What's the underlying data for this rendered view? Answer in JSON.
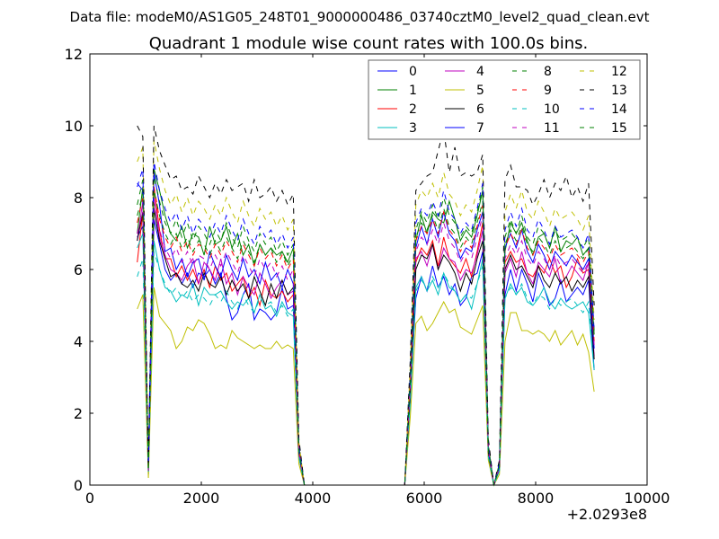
{
  "chart_data": {
    "type": "line",
    "suptitle": "Data file: modeM0/AS1G05_248T01_9000000486_03740cztM0_level2_quad_clean.evt",
    "title": "Quadrant 1 module wise count rates with 100.0s bins.",
    "xlabel": "",
    "ylabel": "",
    "x_offset_label": "+2.0293e8",
    "xlim": [
      0,
      10000
    ],
    "ylim": [
      0,
      12
    ],
    "x_ticks": [
      0,
      2000,
      4000,
      6000,
      8000,
      10000
    ],
    "y_ticks": [
      0,
      2,
      4,
      6,
      8,
      10,
      12
    ],
    "grid": false,
    "legend_position": "top-right",
    "x": [
      850,
      950,
      1050,
      1150,
      1250,
      1350,
      1450,
      1550,
      1650,
      1750,
      1850,
      1950,
      2050,
      2150,
      2250,
      2350,
      2450,
      2550,
      2650,
      2750,
      2850,
      2950,
      3050,
      3150,
      3250,
      3350,
      3450,
      3550,
      3650,
      3750,
      3850,
      5650,
      5750,
      5850,
      5950,
      6050,
      6150,
      6250,
      6350,
      6450,
      6550,
      6650,
      6750,
      6850,
      6950,
      7050,
      7150,
      7250,
      7350,
      7450,
      7550,
      7650,
      7750,
      7850,
      7950,
      8050,
      8150,
      8250,
      8350,
      8450,
      8550,
      8650,
      8750,
      8850,
      8950,
      9050
    ],
    "series": [
      {
        "name": "0",
        "color": "#0000ff",
        "dash": false,
        "values": [
          6.9,
          7.2,
          0.3,
          7.4,
          6.7,
          6.0,
          5.7,
          5.9,
          5.6,
          5.9,
          5.5,
          5.9,
          5.8,
          6.0,
          5.6,
          5.9,
          5.2,
          4.6,
          4.8,
          5.3,
          5.6,
          4.6,
          4.9,
          4.8,
          4.6,
          4.8,
          5.5,
          4.9,
          5.0,
          0.9,
          0.0,
          0.0,
          2.5,
          5.2,
          5.8,
          5.4,
          6.1,
          5.5,
          5.8,
          5.3,
          5.6,
          5.0,
          5.2,
          5.8,
          5.9,
          6.5,
          0.9,
          0.0,
          0.5,
          5.3,
          6.0,
          5.4,
          6.0,
          5.6,
          5.1,
          5.9,
          5.5,
          5.0,
          5.2,
          5.7,
          5.1,
          5.3,
          5.5,
          5.3,
          5.7,
          3.2
        ]
      },
      {
        "name": "1",
        "color": "#008000",
        "dash": false,
        "values": [
          7.0,
          8.3,
          0.4,
          8.8,
          8.2,
          7.5,
          7.0,
          6.8,
          7.2,
          6.6,
          7.0,
          6.9,
          6.4,
          7.2,
          6.7,
          6.8,
          7.2,
          6.6,
          7.0,
          6.4,
          6.7,
          6.1,
          6.7,
          6.4,
          6.6,
          6.4,
          6.5,
          6.2,
          6.6,
          1.0,
          0.0,
          0.0,
          2.8,
          6.8,
          7.5,
          7.0,
          7.6,
          7.4,
          7.3,
          7.9,
          7.4,
          6.8,
          7.1,
          6.9,
          7.5,
          8.2,
          1.1,
          0.0,
          0.6,
          6.5,
          7.3,
          7.0,
          7.3,
          6.8,
          6.4,
          6.9,
          7.0,
          6.6,
          7.2,
          6.5,
          6.8,
          6.7,
          6.9,
          6.4,
          6.6,
          4.2
        ]
      },
      {
        "name": "2",
        "color": "#ff0000",
        "dash": false,
        "values": [
          6.2,
          7.6,
          0.5,
          8.3,
          7.1,
          6.3,
          6.3,
          5.8,
          6.1,
          5.7,
          6.0,
          5.6,
          6.0,
          5.5,
          6.1,
          5.7,
          5.9,
          5.4,
          5.6,
          5.8,
          5.2,
          5.5,
          5.0,
          5.7,
          5.3,
          5.2,
          5.4,
          5.1,
          5.3,
          0.8,
          0.0,
          0.0,
          2.7,
          6.2,
          6.6,
          6.4,
          6.8,
          6.1,
          6.9,
          6.3,
          6.1,
          5.9,
          6.3,
          5.8,
          6.5,
          7.3,
          0.9,
          0.0,
          0.5,
          6.2,
          6.5,
          6.2,
          6.3,
          5.9,
          5.8,
          6.1,
          5.9,
          6.3,
          5.9,
          6.1,
          5.5,
          5.8,
          6.3,
          5.9,
          6.0,
          3.5
        ]
      },
      {
        "name": "3",
        "color": "#00bfbf",
        "dash": false,
        "values": [
          6.6,
          7.0,
          0.3,
          6.8,
          6.0,
          5.5,
          5.4,
          5.1,
          5.3,
          5.2,
          5.6,
          5.0,
          5.5,
          5.3,
          5.3,
          5.4,
          5.1,
          4.9,
          5.1,
          5.0,
          5.2,
          4.8,
          5.3,
          4.9,
          5.0,
          4.7,
          5.1,
          4.8,
          4.7,
          0.8,
          0.0,
          0.0,
          2.3,
          5.5,
          5.8,
          5.4,
          5.7,
          5.3,
          5.9,
          5.5,
          5.4,
          5.1,
          5.3,
          4.9,
          5.6,
          6.3,
          0.8,
          0.0,
          0.4,
          5.2,
          5.6,
          5.3,
          5.5,
          5.1,
          5.0,
          5.2,
          5.5,
          5.1,
          4.9,
          5.2,
          5.0,
          4.9,
          5.0,
          5.1,
          4.8,
          3.2
        ]
      },
      {
        "name": "4",
        "color": "#bf00bf",
        "dash": false,
        "values": [
          6.8,
          7.9,
          0.4,
          8.0,
          6.9,
          6.4,
          6.0,
          5.9,
          5.7,
          6.1,
          6.3,
          5.6,
          6.2,
          6.0,
          5.7,
          6.3,
          5.6,
          5.9,
          5.3,
          5.8,
          5.5,
          5.3,
          5.9,
          5.6,
          5.2,
          5.5,
          5.7,
          5.3,
          5.4,
          0.9,
          0.0,
          0.0,
          2.6,
          6.3,
          6.5,
          6.1,
          6.7,
          6.0,
          6.6,
          6.3,
          6.2,
          5.7,
          6.0,
          5.9,
          6.4,
          7.1,
          0.9,
          0.0,
          0.5,
          5.9,
          6.3,
          5.8,
          6.5,
          5.9,
          5.6,
          6.2,
          6.0,
          5.8,
          6.3,
          5.6,
          5.8,
          6.1,
          5.9,
          5.7,
          6.2,
          3.6
        ]
      },
      {
        "name": "5",
        "color": "#bfbf00",
        "dash": false,
        "values": [
          4.9,
          5.3,
          0.2,
          5.5,
          4.7,
          4.5,
          4.3,
          3.8,
          4.0,
          4.4,
          4.3,
          4.6,
          4.5,
          4.2,
          3.8,
          3.9,
          3.8,
          4.3,
          4.1,
          4.0,
          3.9,
          3.8,
          3.9,
          3.8,
          3.8,
          4.0,
          3.8,
          3.9,
          3.8,
          0.6,
          0.0,
          0.0,
          1.9,
          4.5,
          4.7,
          4.3,
          4.5,
          4.8,
          5.1,
          4.8,
          4.9,
          4.4,
          4.3,
          4.2,
          4.6,
          5.0,
          0.7,
          0.0,
          0.3,
          4.0,
          4.8,
          4.8,
          4.3,
          4.3,
          4.2,
          4.3,
          4.2,
          4.0,
          4.3,
          3.9,
          4.1,
          4.3,
          3.9,
          4.2,
          3.7,
          2.6
        ]
      },
      {
        "name": "6",
        "color": "#000000",
        "dash": false,
        "values": [
          6.8,
          7.6,
          0.4,
          7.7,
          6.8,
          6.3,
          5.8,
          5.9,
          5.6,
          5.5,
          5.7,
          5.4,
          5.9,
          5.6,
          5.5,
          5.8,
          5.3,
          5.7,
          5.4,
          5.6,
          5.2,
          5.8,
          5.4,
          5.0,
          5.6,
          5.2,
          5.7,
          5.3,
          5.5,
          0.9,
          0.0,
          0.0,
          2.6,
          6.0,
          6.4,
          6.3,
          6.7,
          6.0,
          6.4,
          6.2,
          5.9,
          5.4,
          5.9,
          5.6,
          6.3,
          6.8,
          0.9,
          0.0,
          0.5,
          6.0,
          6.4,
          6.0,
          6.1,
          5.8,
          5.5,
          6.1,
          5.7,
          5.5,
          5.9,
          5.6,
          5.8,
          5.4,
          5.7,
          5.5,
          5.8,
          3.5
        ]
      },
      {
        "name": "7",
        "color": "#0000ff",
        "dash": false,
        "values": [
          8.4,
          8.2,
          0.5,
          8.7,
          7.8,
          6.5,
          6.6,
          6.0,
          6.3,
          5.8,
          6.2,
          6.3,
          5.7,
          6.5,
          6.1,
          5.8,
          6.4,
          6.0,
          5.7,
          6.3,
          5.8,
          6.0,
          5.6,
          6.2,
          5.7,
          5.9,
          5.5,
          6.0,
          5.6,
          0.9,
          0.0,
          0.0,
          2.8,
          6.6,
          7.2,
          6.7,
          7.4,
          6.9,
          7.6,
          7.0,
          6.8,
          6.3,
          6.6,
          6.5,
          7.1,
          7.6,
          1.0,
          0.0,
          0.5,
          6.6,
          7.0,
          6.6,
          7.1,
          6.5,
          6.2,
          6.7,
          6.4,
          6.0,
          6.5,
          6.3,
          6.1,
          6.4,
          6.2,
          6.0,
          6.3,
          3.8
        ]
      },
      {
        "name": "8",
        "color": "#008000",
        "dash": true,
        "values": [
          7.8,
          8.5,
          0.4,
          8.6,
          7.9,
          7.3,
          7.0,
          7.4,
          6.9,
          7.3,
          6.8,
          7.2,
          7.0,
          6.7,
          7.1,
          6.8,
          7.3,
          6.9,
          6.6,
          7.2,
          6.8,
          6.5,
          7.0,
          6.7,
          6.9,
          6.5,
          6.8,
          6.4,
          6.7,
          1.1,
          0.0,
          0.0,
          3.0,
          7.1,
          7.6,
          7.3,
          7.8,
          7.4,
          8.0,
          7.5,
          7.3,
          6.9,
          7.2,
          7.0,
          7.6,
          8.3,
          1.1,
          0.0,
          0.6,
          6.9,
          7.4,
          7.0,
          7.5,
          6.9,
          6.7,
          7.2,
          7.0,
          6.6,
          7.1,
          6.8,
          6.9,
          7.0,
          6.8,
          6.6,
          6.9,
          4.3
        ]
      },
      {
        "name": "9",
        "color": "#ff0000",
        "dash": true,
        "values": [
          7.3,
          8.0,
          0.4,
          8.3,
          7.4,
          6.9,
          6.6,
          6.9,
          6.5,
          6.8,
          6.4,
          6.7,
          6.6,
          6.3,
          6.7,
          6.4,
          6.8,
          6.5,
          6.2,
          6.7,
          6.4,
          6.1,
          6.6,
          6.3,
          6.5,
          6.1,
          6.4,
          6.0,
          6.3,
          1.0,
          0.0,
          0.0,
          2.9,
          6.8,
          7.2,
          7.0,
          7.4,
          7.0,
          7.6,
          7.1,
          6.9,
          6.5,
          6.8,
          6.6,
          7.2,
          7.8,
          1.0,
          0.0,
          0.5,
          6.6,
          7.0,
          6.7,
          7.1,
          6.6,
          6.4,
          6.8,
          6.6,
          6.3,
          6.7,
          6.4,
          6.5,
          6.6,
          6.4,
          6.2,
          6.5,
          4.0
        ]
      },
      {
        "name": "10",
        "color": "#00bfbf",
        "dash": true,
        "values": [
          5.8,
          6.3,
          0.3,
          6.5,
          6.0,
          5.6,
          5.3,
          5.5,
          5.2,
          5.4,
          5.1,
          5.3,
          5.2,
          5.0,
          5.3,
          5.1,
          5.4,
          5.1,
          4.9,
          5.3,
          5.0,
          4.8,
          5.2,
          5.0,
          5.1,
          4.8,
          5.0,
          4.7,
          4.9,
          0.8,
          0.0,
          0.0,
          2.3,
          5.4,
          5.7,
          5.5,
          5.8,
          5.5,
          5.9,
          5.6,
          5.4,
          5.1,
          5.3,
          5.2,
          5.6,
          6.1,
          0.8,
          0.0,
          0.4,
          5.2,
          5.5,
          5.3,
          5.6,
          5.2,
          5.0,
          5.3,
          5.2,
          4.9,
          5.2,
          5.0,
          5.1,
          5.2,
          5.0,
          4.8,
          5.1,
          3.2
        ]
      },
      {
        "name": "11",
        "color": "#bf00bf",
        "dash": true,
        "values": [
          7.0,
          7.6,
          0.4,
          7.9,
          7.1,
          6.6,
          6.3,
          6.6,
          6.2,
          6.5,
          6.1,
          6.4,
          6.3,
          6.0,
          6.4,
          6.1,
          6.5,
          6.2,
          5.9,
          6.4,
          6.1,
          5.8,
          6.3,
          6.0,
          6.2,
          5.8,
          6.1,
          5.7,
          6.0,
          1.0,
          0.0,
          0.0,
          2.8,
          6.5,
          6.9,
          6.7,
          7.1,
          6.7,
          7.3,
          6.8,
          6.6,
          6.2,
          6.5,
          6.3,
          6.9,
          7.5,
          1.0,
          0.0,
          0.5,
          6.3,
          6.7,
          6.4,
          6.8,
          6.3,
          6.1,
          6.5,
          6.3,
          6.0,
          6.4,
          6.1,
          6.2,
          6.3,
          6.1,
          5.9,
          6.2,
          3.9
        ]
      },
      {
        "name": "12",
        "color": "#bfbf00",
        "dash": true,
        "values": [
          9.0,
          9.4,
          0.5,
          9.6,
          8.8,
          8.2,
          7.8,
          8.1,
          7.6,
          8.0,
          7.5,
          7.9,
          7.7,
          7.4,
          7.8,
          7.5,
          8.0,
          7.6,
          7.3,
          7.9,
          7.5,
          7.2,
          7.7,
          7.4,
          7.6,
          7.2,
          7.5,
          7.1,
          7.4,
          1.2,
          0.0,
          0.0,
          3.3,
          7.8,
          8.2,
          8.0,
          8.4,
          8.0,
          8.7,
          8.1,
          7.9,
          7.5,
          7.8,
          7.6,
          8.2,
          8.9,
          1.2,
          0.0,
          0.6,
          7.6,
          8.1,
          7.7,
          8.2,
          7.6,
          7.4,
          7.9,
          7.6,
          7.2,
          7.7,
          7.4,
          7.5,
          7.6,
          7.4,
          7.1,
          7.5,
          4.6
        ]
      },
      {
        "name": "13",
        "color": "#000000",
        "dash": true,
        "values": [
          10.0,
          9.7,
          0.5,
          10.0,
          9.3,
          8.9,
          8.5,
          8.6,
          8.2,
          8.3,
          8.1,
          8.6,
          8.3,
          8.0,
          8.4,
          8.1,
          8.5,
          8.2,
          8.3,
          8.4,
          7.9,
          8.5,
          8.0,
          8.1,
          8.3,
          7.9,
          8.2,
          7.8,
          8.1,
          1.3,
          0.0,
          0.0,
          3.5,
          8.2,
          8.4,
          8.6,
          8.7,
          9.3,
          9.9,
          8.7,
          9.4,
          8.6,
          8.7,
          8.6,
          8.7,
          9.2,
          1.3,
          0.0,
          0.7,
          8.5,
          8.9,
          8.3,
          8.3,
          8.2,
          7.8,
          8.1,
          8.5,
          8.0,
          8.4,
          8.2,
          8.6,
          8.0,
          8.3,
          7.9,
          8.4,
          5.0
        ]
      },
      {
        "name": "14",
        "color": "#0000ff",
        "dash": true,
        "values": [
          8.3,
          8.8,
          0.5,
          9.0,
          8.2,
          7.7,
          7.3,
          7.6,
          7.1,
          7.5,
          7.0,
          7.4,
          7.2,
          6.9,
          7.3,
          7.0,
          7.5,
          7.1,
          6.8,
          7.4,
          7.0,
          6.7,
          7.2,
          6.9,
          7.1,
          6.7,
          7.0,
          6.6,
          6.9,
          1.1,
          0.0,
          0.0,
          3.1,
          7.3,
          7.7,
          7.5,
          7.9,
          7.5,
          8.2,
          7.6,
          7.4,
          7.0,
          7.3,
          7.1,
          7.7,
          8.4,
          1.1,
          0.0,
          0.6,
          7.1,
          7.6,
          7.2,
          7.7,
          7.1,
          6.9,
          7.4,
          7.1,
          6.7,
          7.2,
          6.9,
          7.0,
          7.1,
          6.9,
          6.6,
          7.0,
          4.3
        ]
      },
      {
        "name": "15",
        "color": "#008000",
        "dash": true,
        "values": [
          7.5,
          8.1,
          0.4,
          8.2,
          7.5,
          7.0,
          6.7,
          7.0,
          6.6,
          6.9,
          6.5,
          6.8,
          6.7,
          6.4,
          6.8,
          6.5,
          6.9,
          6.6,
          6.3,
          6.8,
          6.5,
          6.2,
          6.7,
          6.4,
          6.6,
          6.2,
          6.5,
          6.1,
          6.4,
          1.0,
          0.0,
          0.0,
          2.9,
          6.9,
          7.3,
          7.1,
          7.5,
          7.1,
          7.7,
          7.2,
          7.0,
          6.6,
          6.9,
          6.7,
          7.3,
          7.9,
          1.0,
          0.0,
          0.5,
          6.7,
          7.1,
          6.8,
          7.2,
          6.7,
          6.5,
          6.9,
          6.7,
          6.4,
          6.8,
          6.5,
          6.6,
          6.7,
          6.5,
          6.3,
          6.6,
          4.1
        ]
      }
    ]
  }
}
